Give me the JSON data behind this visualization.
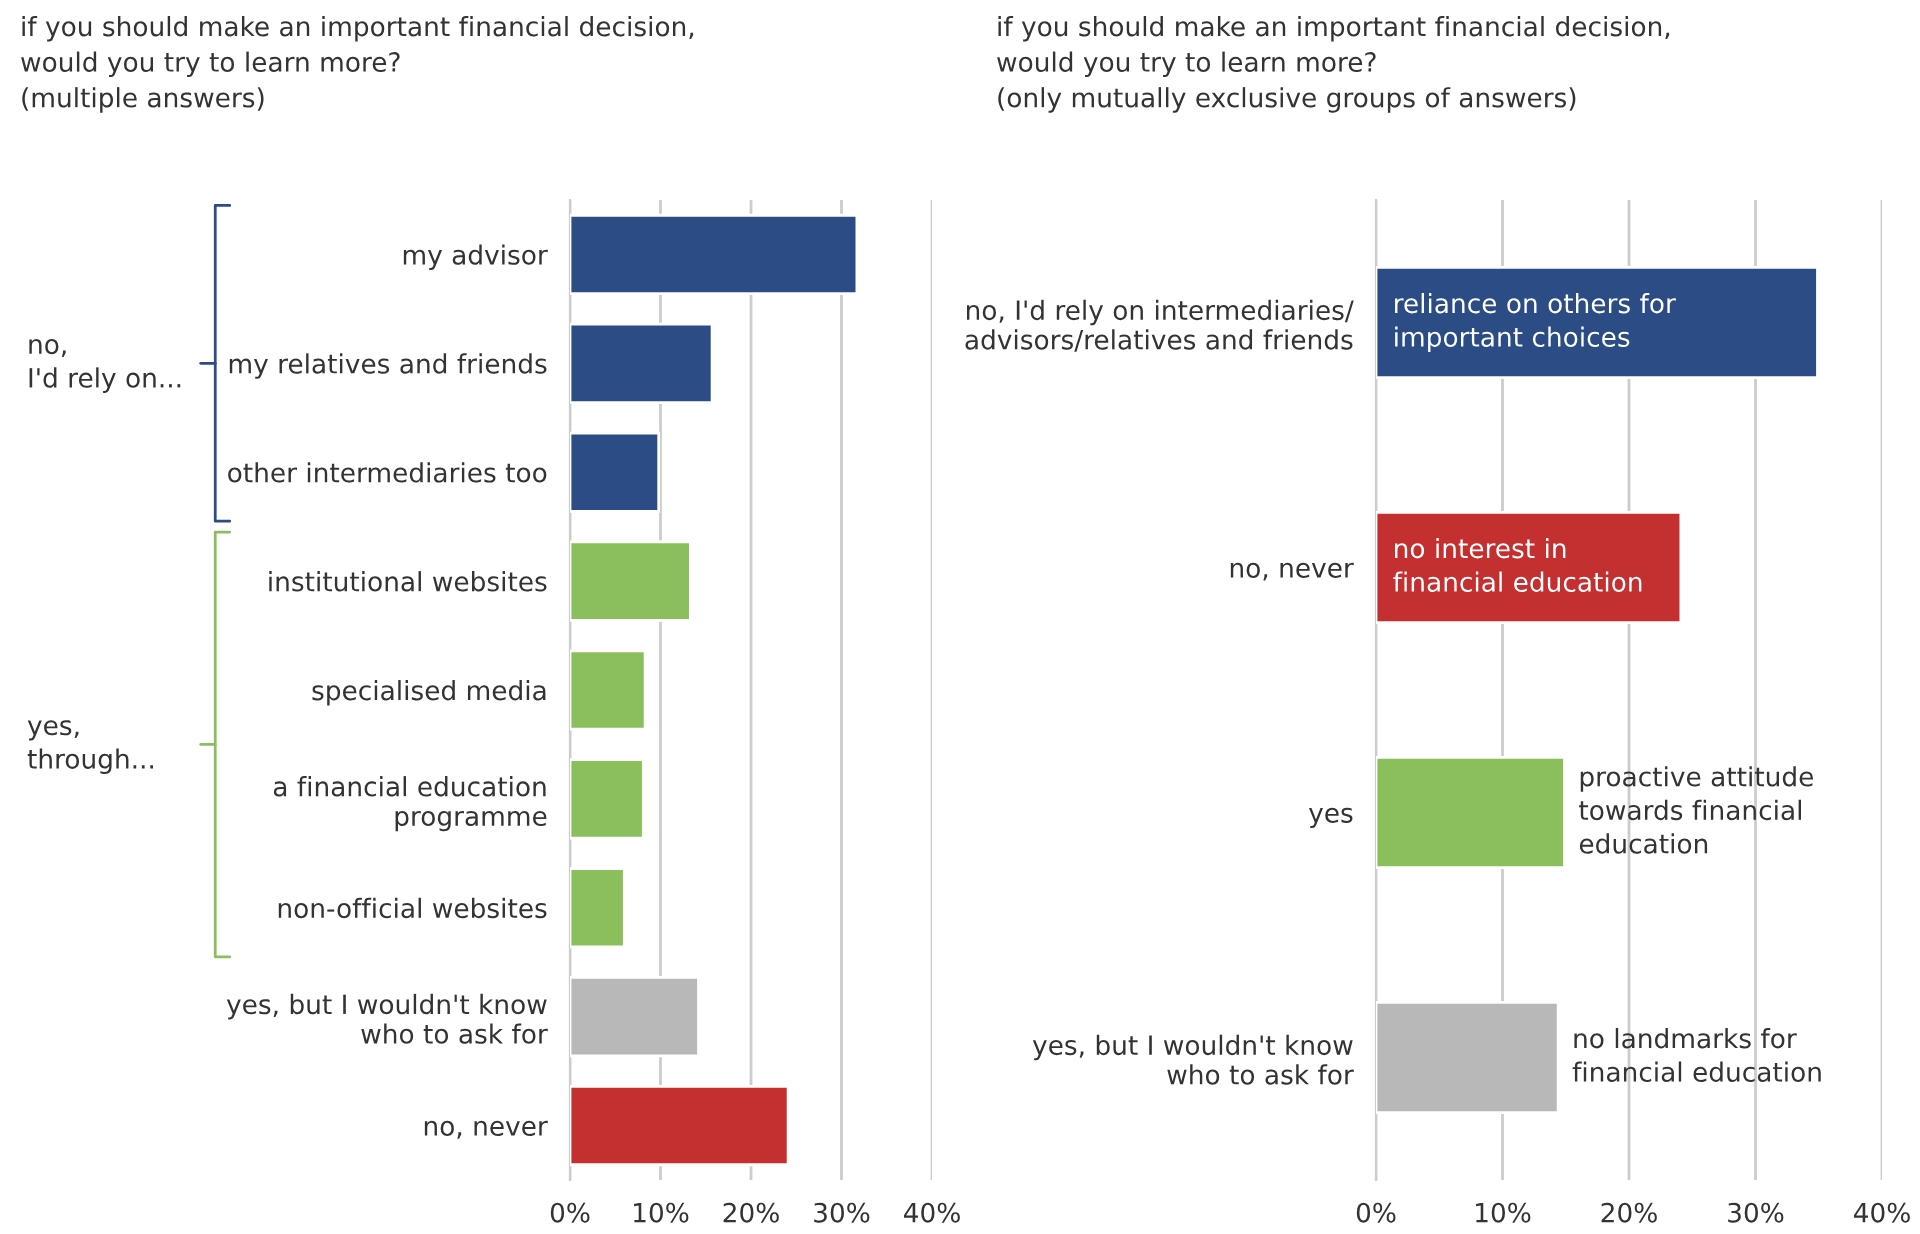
{
  "chart_data": [
    {
      "type": "bar",
      "orientation": "horizontal",
      "title": "if you should make an important financial decision,\nwould you try to learn more?\n(multiple answers)",
      "categories": [
        "my advisor",
        "my relatives and friends",
        "other intermediaries too",
        "institutional websites",
        "specialised media",
        "a financial education\nprogramme",
        "non-official websites",
        "yes, but I wouldn't know\nwho to ask for",
        "no, never"
      ],
      "values": [
        31.7,
        15.7,
        9.8,
        13.3,
        8.3,
        8.1,
        6.0,
        14.2,
        24.1
      ],
      "colors": [
        "#2b4c84",
        "#2b4c84",
        "#2b4c84",
        "#8bbf5b",
        "#8bbf5b",
        "#8bbf5b",
        "#8bbf5b",
        "#b8b8b8",
        "#c3302f"
      ],
      "xlim": [
        0,
        40
      ],
      "xticks": [
        {
          "value": 0,
          "label": "0%"
        },
        {
          "value": 10,
          "label": "10%"
        },
        {
          "value": 20,
          "label": "20%"
        },
        {
          "value": 30,
          "label": "30%"
        },
        {
          "value": 40,
          "label": "40%"
        }
      ],
      "grid": "x",
      "annotations": [
        "no,\nI'd rely on...",
        "yes,\nthrough..."
      ]
    },
    {
      "type": "bar",
      "orientation": "horizontal",
      "title": "if you should make an important financial decision,\nwould you try to learn more?\n(only mutually exclusive groups of answers)",
      "categories": [
        "no, I'd rely on intermediaries/\nadvisors/relatives and friends",
        "no, never",
        "yes",
        "yes, but I wouldn't know\nwho to ask for"
      ],
      "values": [
        34.9,
        24.1,
        14.9,
        14.4
      ],
      "colors": [
        "#2b4c84",
        "#c3302f",
        "#8bbf5b",
        "#b8b8b8"
      ],
      "xlim": [
        0,
        40
      ],
      "xticks": [
        {
          "value": 0,
          "label": "0%"
        },
        {
          "value": 10,
          "label": "10%"
        },
        {
          "value": 20,
          "label": "20%"
        },
        {
          "value": 30,
          "label": "30%"
        },
        {
          "value": 40,
          "label": "40%"
        }
      ],
      "grid": "x",
      "annotations": [
        "reliance on others for\nimportant choices",
        "no interest in\nfinancial education",
        "proactive attitude\ntowards financial\neducation",
        "no landmarks for\nfinancial education"
      ]
    }
  ]
}
